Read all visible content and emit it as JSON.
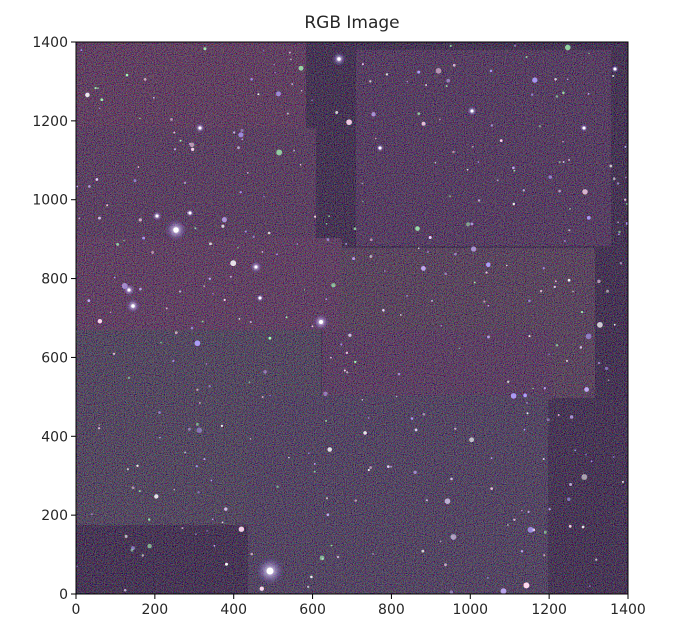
{
  "figure": {
    "title": "RGB Image",
    "x_axis": {
      "range": [
        0,
        1400
      ],
      "ticks": [
        0,
        200,
        400,
        600,
        800,
        1000,
        1200,
        1400
      ]
    },
    "y_axis": {
      "range": [
        0,
        1400
      ],
      "ticks": [
        0,
        200,
        400,
        600,
        800,
        1000,
        1200,
        1400
      ],
      "origin": "lower"
    }
  },
  "image": {
    "content": "astronomical-star-field",
    "colors": {
      "background": "#000000",
      "red_mosaic_tile": "#3a1a1e",
      "green_mosaic_tile": "#1f2a1c",
      "star_core": "#ffffff",
      "star_halo": "#d0b8ff"
    }
  }
}
